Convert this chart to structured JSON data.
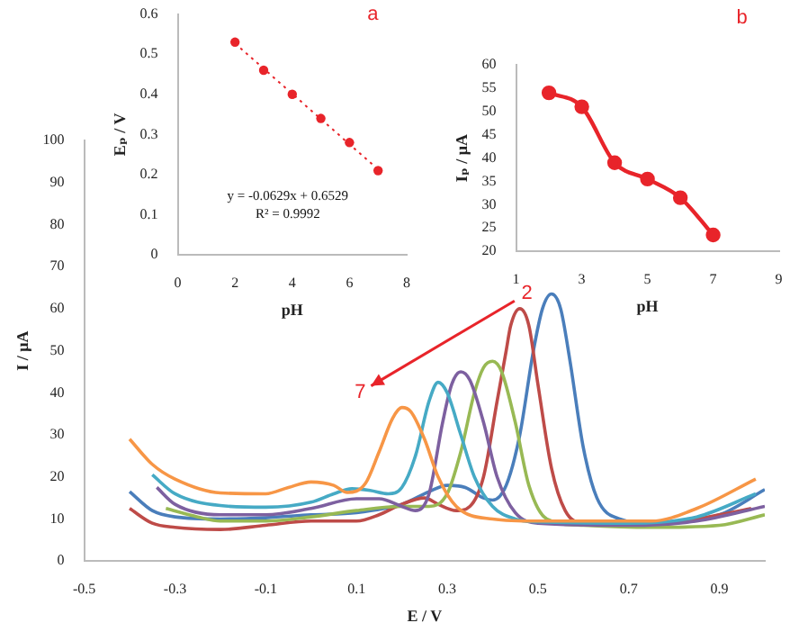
{
  "chart_data": [
    {
      "type": "scatter",
      "xlabel": "pH",
      "ylabel": "Eₚ / V",
      "xlim": [
        0,
        8
      ],
      "xticks": [
        0,
        2,
        4,
        6,
        8
      ],
      "ylim": [
        0,
        0.6
      ],
      "yticks": [
        0,
        0.1,
        0.2,
        0.3,
        0.4,
        0.5,
        0.6
      ],
      "grid": false,
      "legend": false,
      "marker": "circle",
      "annotations": [
        "a",
        "y = -0.0629x + 0.6529",
        "R² = 0.9992"
      ],
      "series": [
        {
          "color": "#e8242a",
          "x": [
            2,
            3,
            4,
            5,
            6,
            7
          ],
          "values": [
            0.53,
            0.46,
            0.4,
            0.34,
            0.28,
            0.21
          ]
        },
        {
          "type": "line",
          "line_style": "dotted",
          "marker": "none",
          "color": "#e8242a",
          "x": [
            2,
            7
          ],
          "values": [
            0.527,
            0.213
          ]
        }
      ]
    },
    {
      "type": "line",
      "xlabel": "pH",
      "ylabel": "Iₚ / μA",
      "xlim": [
        1,
        9
      ],
      "xticks": [
        1,
        3,
        5,
        7,
        9
      ],
      "ylim": [
        20,
        60
      ],
      "yticks": [
        20,
        25,
        30,
        35,
        40,
        45,
        50,
        55,
        60
      ],
      "grid": false,
      "legend": false,
      "marker": "circle",
      "annotations": [
        "b"
      ],
      "series": [
        {
          "color": "#e8242a",
          "x": [
            2,
            3,
            4,
            5,
            6,
            7
          ],
          "values": [
            54,
            51,
            39,
            35.5,
            31.5,
            23.5
          ]
        }
      ]
    },
    {
      "type": "line",
      "xlabel": "E / V",
      "ylabel": "I / μA",
      "xlim": [
        -0.5,
        1.0
      ],
      "xticks": [
        -0.5,
        -0.3,
        -0.1,
        0.1,
        0.3,
        0.5,
        0.7,
        0.9
      ],
      "ylim": [
        0,
        100
      ],
      "yticks": [
        0,
        10,
        20,
        30,
        40,
        50,
        60,
        70,
        80,
        90,
        100
      ],
      "grid": false,
      "legend": false,
      "marker": "none",
      "annotations": [
        "2",
        "7"
      ],
      "series": [
        {
          "color": "#f79646",
          "x": [
            -0.4,
            -0.35,
            -0.3,
            -0.2,
            -0.1,
            -0.05,
            0.0,
            0.05,
            0.08,
            0.12,
            0.15,
            0.18,
            0.2,
            0.22,
            0.25,
            0.28,
            0.32,
            0.4,
            0.5,
            0.6,
            0.75,
            0.85,
            0.98
          ],
          "values": [
            29,
            23,
            19.5,
            16.2,
            16,
            17.5,
            18.8,
            18,
            16.3,
            18.5,
            26,
            34,
            36.5,
            35.5,
            29,
            20,
            13,
            10,
            9.5,
            9.5,
            9.5,
            12.5,
            19.5
          ]
        },
        {
          "color": "#46aac5",
          "x": [
            -0.35,
            -0.3,
            -0.2,
            -0.1,
            0.0,
            0.05,
            0.09,
            0.13,
            0.17,
            0.2,
            0.23,
            0.26,
            0.28,
            0.3,
            0.33,
            0.36,
            0.4,
            0.45,
            0.5,
            0.7,
            0.85,
            0.98
          ],
          "values": [
            20.5,
            16,
            13.2,
            12.8,
            14,
            16,
            17.2,
            16.8,
            16,
            17.5,
            25,
            38,
            42.5,
            40,
            30,
            20,
            13,
            10,
            9.3,
            9,
            10.5,
            16
          ]
        },
        {
          "color": "#7d60a0",
          "x": [
            -0.34,
            -0.3,
            -0.2,
            -0.1,
            0.0,
            0.1,
            0.15,
            0.2,
            0.23,
            0.26,
            0.29,
            0.31,
            0.33,
            0.35,
            0.38,
            0.41,
            0.45,
            0.5,
            0.7,
            0.85,
            1.0
          ],
          "values": [
            17.5,
            13.5,
            11,
            11,
            12.5,
            14.8,
            14.8,
            13,
            12,
            16,
            33,
            42,
            45,
            43,
            33,
            20,
            11.5,
            9,
            8.5,
            9.5,
            13
          ]
        },
        {
          "color": "#98b954",
          "x": [
            -0.32,
            -0.25,
            -0.2,
            -0.1,
            0.0,
            0.1,
            0.2,
            0.26,
            0.3,
            0.33,
            0.36,
            0.38,
            0.4,
            0.42,
            0.45,
            0.48,
            0.52,
            0.6,
            0.75,
            0.9,
            1.0
          ],
          "values": [
            12.5,
            10.5,
            9.5,
            9.5,
            10.5,
            12,
            13,
            13,
            16,
            26,
            40,
            46,
            47.5,
            45,
            33,
            18,
            10,
            8.5,
            8,
            8.5,
            11
          ]
        },
        {
          "color": "#be4b48",
          "x": [
            -0.4,
            -0.35,
            -0.3,
            -0.2,
            -0.1,
            0.0,
            0.1,
            0.15,
            0.2,
            0.25,
            0.28,
            0.32,
            0.35,
            0.38,
            0.41,
            0.43,
            0.44,
            0.46,
            0.48,
            0.5,
            0.53,
            0.56,
            0.6,
            0.75,
            0.9,
            0.97
          ],
          "values": [
            12.5,
            9,
            8,
            7.5,
            8.5,
            9.5,
            9.5,
            11,
            13.5,
            15,
            13.5,
            12,
            13,
            20,
            38,
            50,
            56,
            60,
            56,
            42,
            22,
            12,
            9,
            8.5,
            11,
            12.5
          ]
        },
        {
          "color": "#4a7ebb",
          "x": [
            -0.4,
            -0.35,
            -0.3,
            -0.2,
            -0.1,
            0.0,
            0.1,
            0.2,
            0.26,
            0.3,
            0.34,
            0.38,
            0.4,
            0.43,
            0.46,
            0.49,
            0.51,
            0.53,
            0.55,
            0.57,
            0.6,
            0.63,
            0.68,
            0.75,
            0.9,
            1.0
          ],
          "values": [
            16.5,
            12,
            10.5,
            10,
            10.3,
            11,
            11.5,
            13.5,
            16.5,
            18,
            17.5,
            15,
            14.5,
            18,
            30,
            50,
            60,
            63.5,
            60,
            48,
            27,
            15,
            10,
            9,
            11,
            17
          ]
        }
      ]
    }
  ]
}
